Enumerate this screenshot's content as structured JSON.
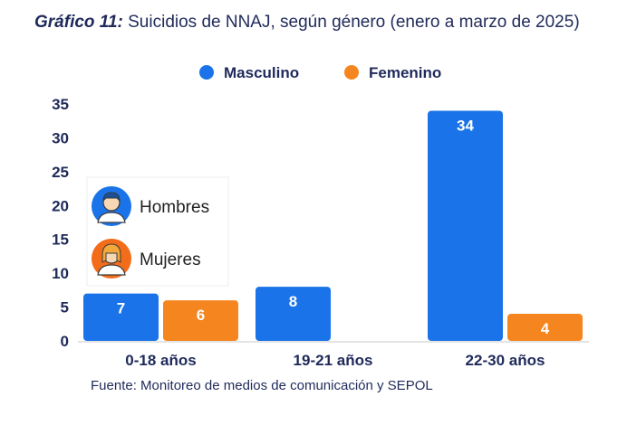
{
  "title_prefix": "Gráfico 11:",
  "title_text": " Suicidios de NNAJ, según género (enero a marzo de 2025)",
  "source": "Fuente: Monitoreo de medios de comunicación y SEPOL",
  "colors": {
    "masculino": "#1a73e8",
    "femenino": "#f5851f",
    "text": "#1f2a5a",
    "axis": "#c8c8c8"
  },
  "inset_legend": [
    {
      "label": "Hombres",
      "icon": "man-avatar-icon",
      "color": "#1a73e8"
    },
    {
      "label": "Mujeres",
      "icon": "woman-avatar-icon",
      "color": "#f26c1a"
    }
  ],
  "chart_data": {
    "type": "bar",
    "categories": [
      "0-18 años",
      "19-21 años",
      "22-30 años"
    ],
    "series": [
      {
        "name": "Masculino",
        "values": [
          7,
          8,
          34
        ]
      },
      {
        "name": "Femenino",
        "values": [
          6,
          null,
          4
        ]
      }
    ],
    "yticks": [
      0,
      5,
      10,
      15,
      20,
      25,
      30,
      35
    ],
    "ylim": [
      0,
      35
    ],
    "legend_position": "top-center",
    "grid": false
  }
}
